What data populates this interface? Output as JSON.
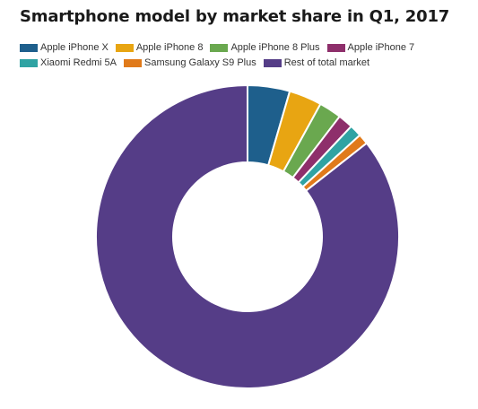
{
  "chart_data": {
    "type": "pie",
    "variant": "donut",
    "title": "Smartphone model by market share in Q1, 2017",
    "legend_position": "top-left",
    "series": [
      {
        "name": "Apple iPhone X",
        "value": 4.5,
        "color": "#1e5f8c"
      },
      {
        "name": "Apple iPhone 8",
        "value": 3.5,
        "color": "#e8a512"
      },
      {
        "name": "Apple iPhone 8 Plus",
        "value": 2.4,
        "color": "#6aa84f"
      },
      {
        "name": "Apple iPhone 7",
        "value": 1.6,
        "color": "#8e2f6b"
      },
      {
        "name": "Xiaomi Redmi 5A",
        "value": 1.3,
        "color": "#2fa3a3"
      },
      {
        "name": "Samsung Galaxy S9 Plus",
        "value": 1.1,
        "color": "#e07a1a"
      },
      {
        "name": "Rest of total market",
        "value": 85.6,
        "color": "#553d87"
      }
    ]
  }
}
